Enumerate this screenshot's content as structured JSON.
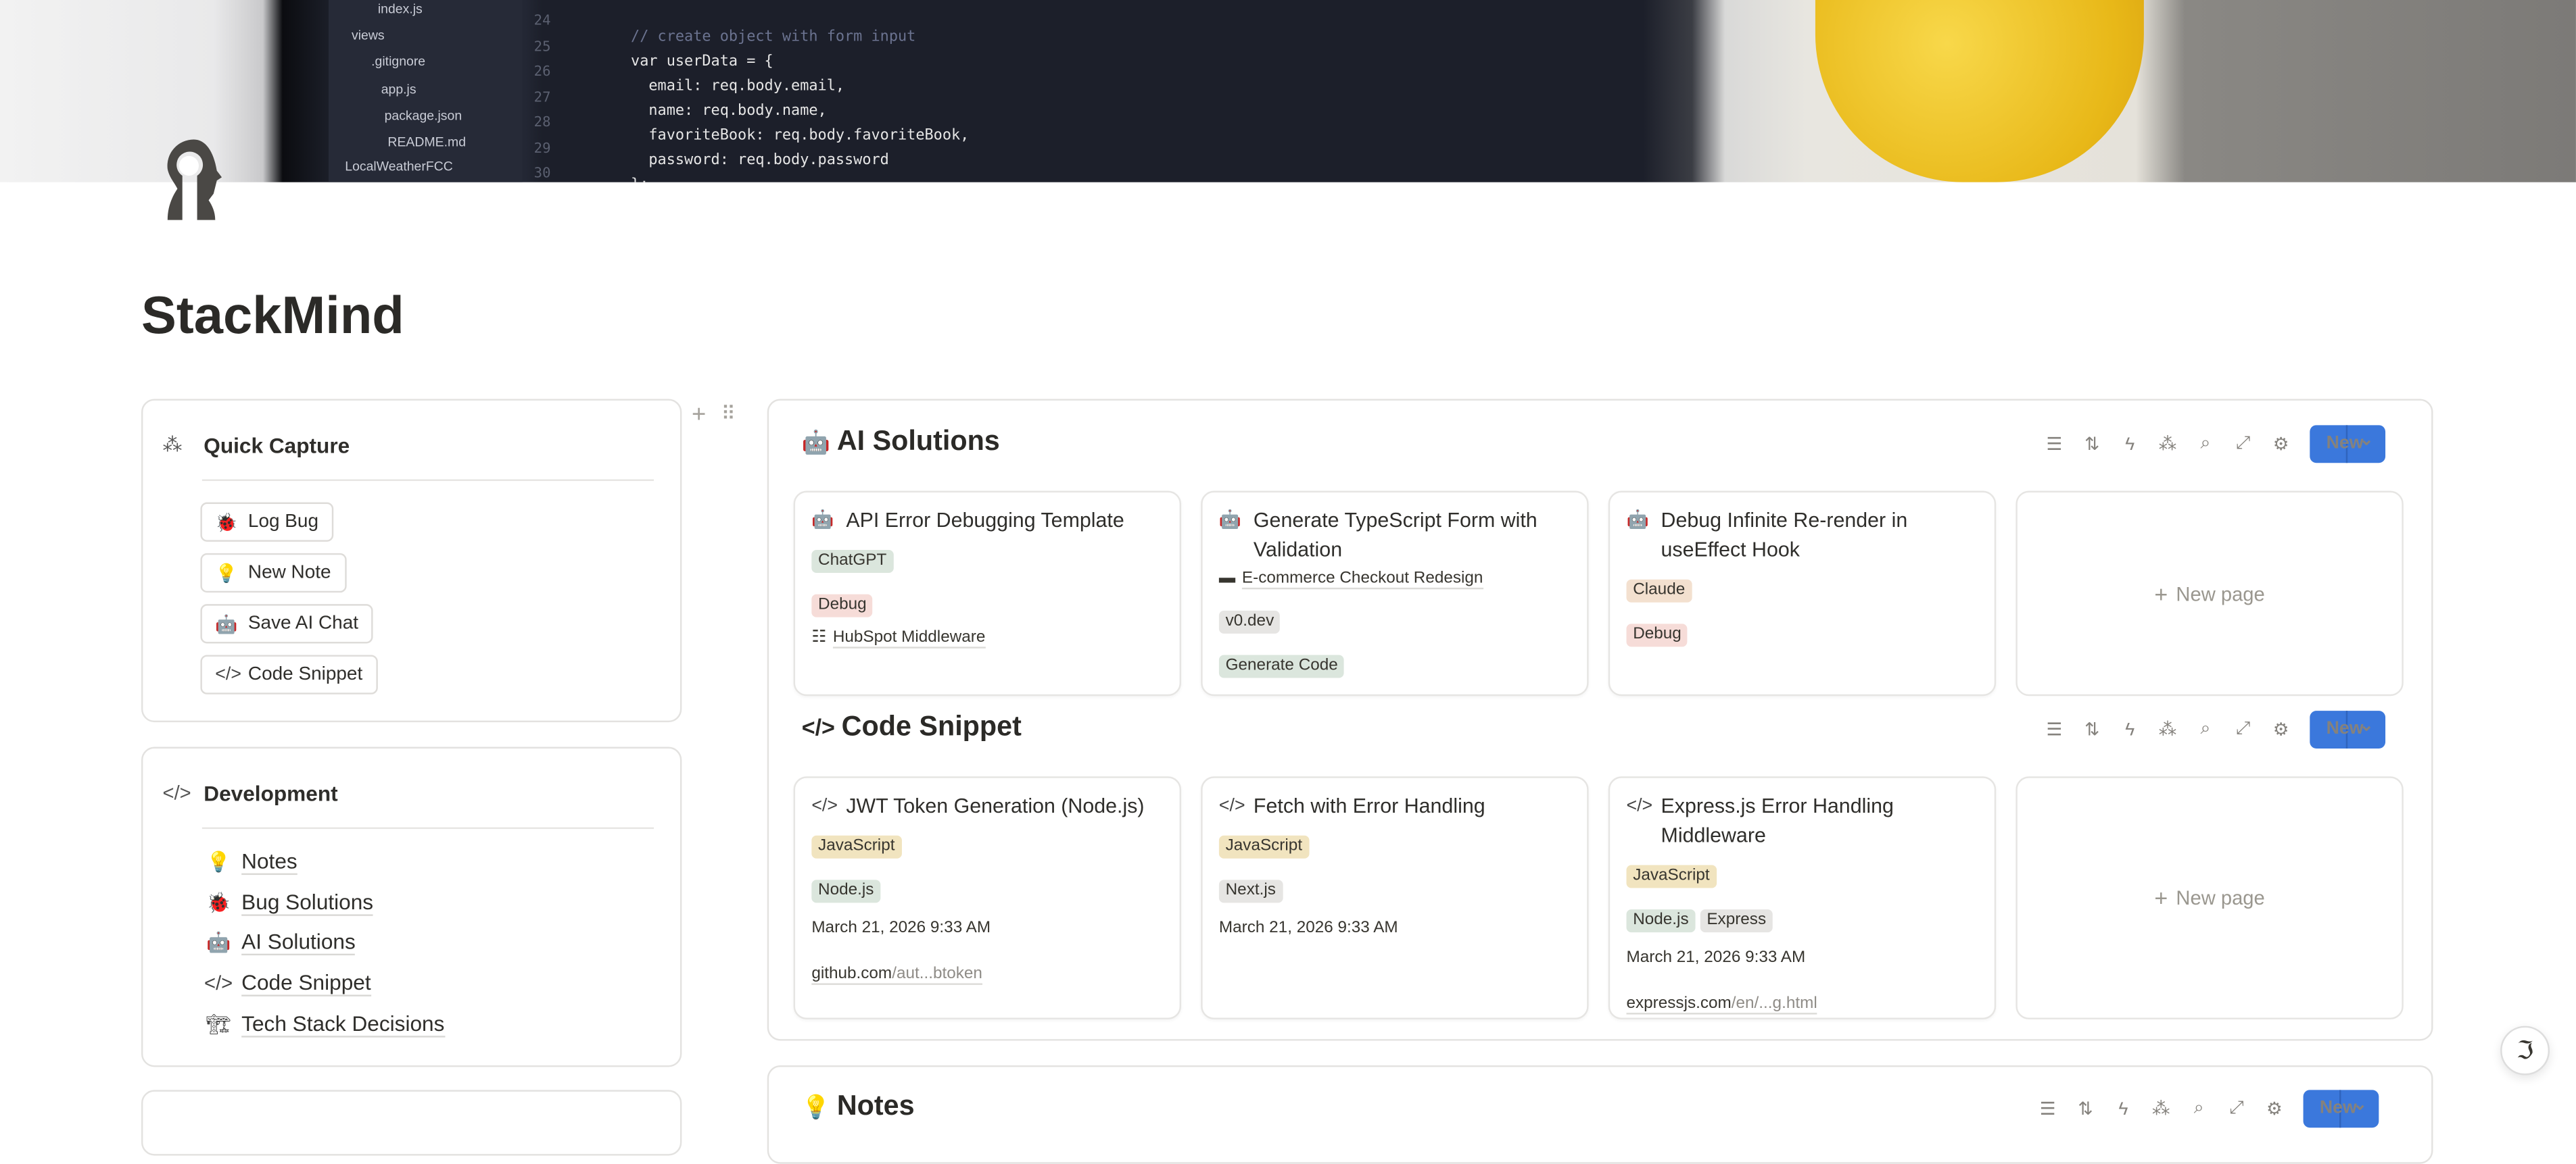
{
  "cover": {
    "file_tree": [
      "index.js",
      "views",
      ".gitignore",
      "app.js",
      "package.json",
      "README.md",
      "LocalWeatherFCC"
    ],
    "line_numbers": [
      "24",
      "25",
      "26",
      "27",
      "28",
      "29",
      "30"
    ],
    "code_lines": [
      "// create object with form input",
      "var userData = {",
      "  email: req.body.email,",
      "  name: req.body.name,",
      "  favoriteBook: req.body.favoriteBook,",
      "  password: req.body.password",
      "};"
    ]
  },
  "page": {
    "title": "StackMind",
    "icon": "head-keyhole-icon"
  },
  "quick_capture": {
    "title": "Quick Capture",
    "icon": "sparkle-cursor-icon",
    "buttons": [
      {
        "label": "Log Bug",
        "icon": "bug-icon"
      },
      {
        "label": "New Note",
        "icon": "lightbulb-icon"
      },
      {
        "label": "Save AI Chat",
        "icon": "robot-icon"
      },
      {
        "label": "Code Snippet",
        "icon": "code-icon"
      }
    ]
  },
  "development": {
    "title": "Development",
    "icon": "code-icon",
    "links": [
      {
        "label": "Notes",
        "icon": "lightbulb-link-icon"
      },
      {
        "label": "Bug Solutions",
        "icon": "bug-link-icon"
      },
      {
        "label": "AI Solutions",
        "icon": "robot-link-icon"
      },
      {
        "label": "Code Snippet",
        "icon": "code-link-icon"
      },
      {
        "label": "Tech Stack Decisions",
        "icon": "crane-link-icon"
      }
    ]
  },
  "toolbar": {
    "icons": [
      "filter-icon",
      "sort-icon",
      "automation-bolt-icon",
      "ai-sparkle-icon",
      "search-icon",
      "expand-icon",
      "settings-sliders-icon"
    ],
    "new_label": "New",
    "accent": "#3b78dc"
  },
  "new_page_label": "New page",
  "tag_colors": {
    "green": "#dbe6dd",
    "red": "#f6dcd8",
    "orange": "#f3e0cf",
    "gray": "#e6e5e3",
    "yellow": "#f1e4bf"
  },
  "ai_solutions": {
    "title": "AI Solutions",
    "cards": [
      {
        "title": "API Error Debugging Template",
        "tags": [
          [
            {
              "t": "ChatGPT",
              "c": "green"
            }
          ],
          [
            {
              "t": "Debug",
              "c": "red"
            }
          ]
        ],
        "relation": "HubSpot Middleware"
      },
      {
        "title": "Generate TypeScript Form with Validation",
        "relation_first": "E-commerce Checkout Redesign",
        "tags": [
          [
            {
              "t": "v0.dev",
              "c": "gray"
            }
          ],
          [
            {
              "t": "Generate Code",
              "c": "green"
            }
          ]
        ]
      },
      {
        "title": "Debug Infinite Re-render in useEffect Hook",
        "tags": [
          [
            {
              "t": "Claude",
              "c": "orange"
            }
          ],
          [
            {
              "t": "Debug",
              "c": "red"
            }
          ]
        ]
      }
    ]
  },
  "code_snippet": {
    "title": "Code Snippet",
    "cards": [
      {
        "title": "JWT Token Generation (Node.js)",
        "tags": [
          [
            {
              "t": "JavaScript",
              "c": "yellow"
            }
          ],
          [
            {
              "t": "Node.js",
              "c": "green"
            }
          ]
        ],
        "date": "March 21, 2026 9:33 AM",
        "url_host": "github.com",
        "url_rest": "/aut...btoken"
      },
      {
        "title": "Fetch with Error Handling",
        "tags": [
          [
            {
              "t": "JavaScript",
              "c": "yellow"
            }
          ],
          [
            {
              "t": "Next.js",
              "c": "gray"
            }
          ]
        ],
        "date": "March 21, 2026 9:33 AM"
      },
      {
        "title": "Express.js Error Handling Middleware",
        "tags": [
          [
            {
              "t": "JavaScript",
              "c": "yellow"
            }
          ],
          [
            {
              "t": "Node.js",
              "c": "green"
            },
            {
              "t": "Express",
              "c": "gray"
            }
          ]
        ],
        "date": "March 21, 2026 9:33 AM",
        "url_host": "expressjs.com",
        "url_rest": "/en/...g.html"
      }
    ]
  },
  "notes": {
    "title": "Notes"
  },
  "help_button": {
    "icon": "notion-ai-face-icon"
  }
}
